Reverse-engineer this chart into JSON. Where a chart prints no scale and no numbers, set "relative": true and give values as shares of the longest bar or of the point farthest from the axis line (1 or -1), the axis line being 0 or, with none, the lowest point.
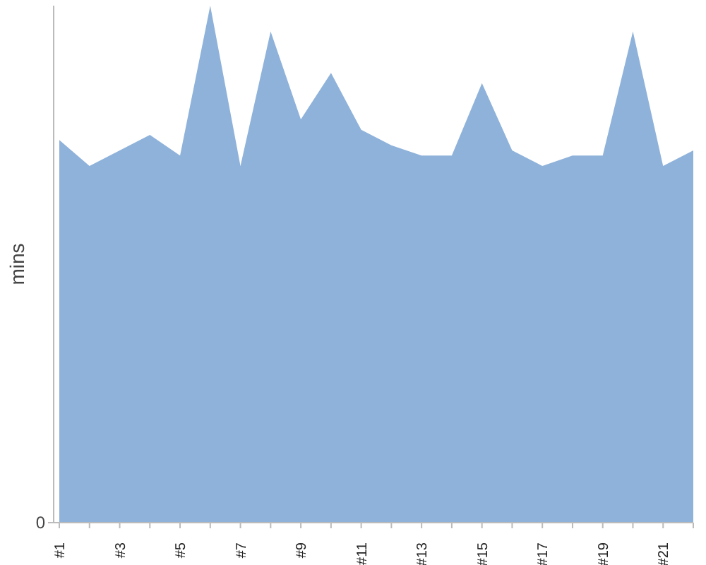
{
  "chart_data": {
    "type": "area",
    "ylabel": "mins",
    "relative": true,
    "color": "#8fb2da",
    "categories": [
      "#1",
      null,
      "#3",
      null,
      "#5",
      null,
      "#7",
      null,
      "#9",
      null,
      "#11",
      null,
      "#13",
      null,
      "#15",
      null,
      "#17",
      null,
      "#19",
      null,
      "#21",
      null
    ],
    "values": [
      0.74,
      0.69,
      0.72,
      0.75,
      0.71,
      1,
      0.69,
      0.95,
      0.78,
      0.87,
      0.76,
      0.73,
      0.71,
      0.71,
      0.85,
      0.72,
      0.69,
      0.71,
      0.71,
      0.95,
      0.69,
      0.72
    ],
    "annotations": [
      "0"
    ]
  }
}
